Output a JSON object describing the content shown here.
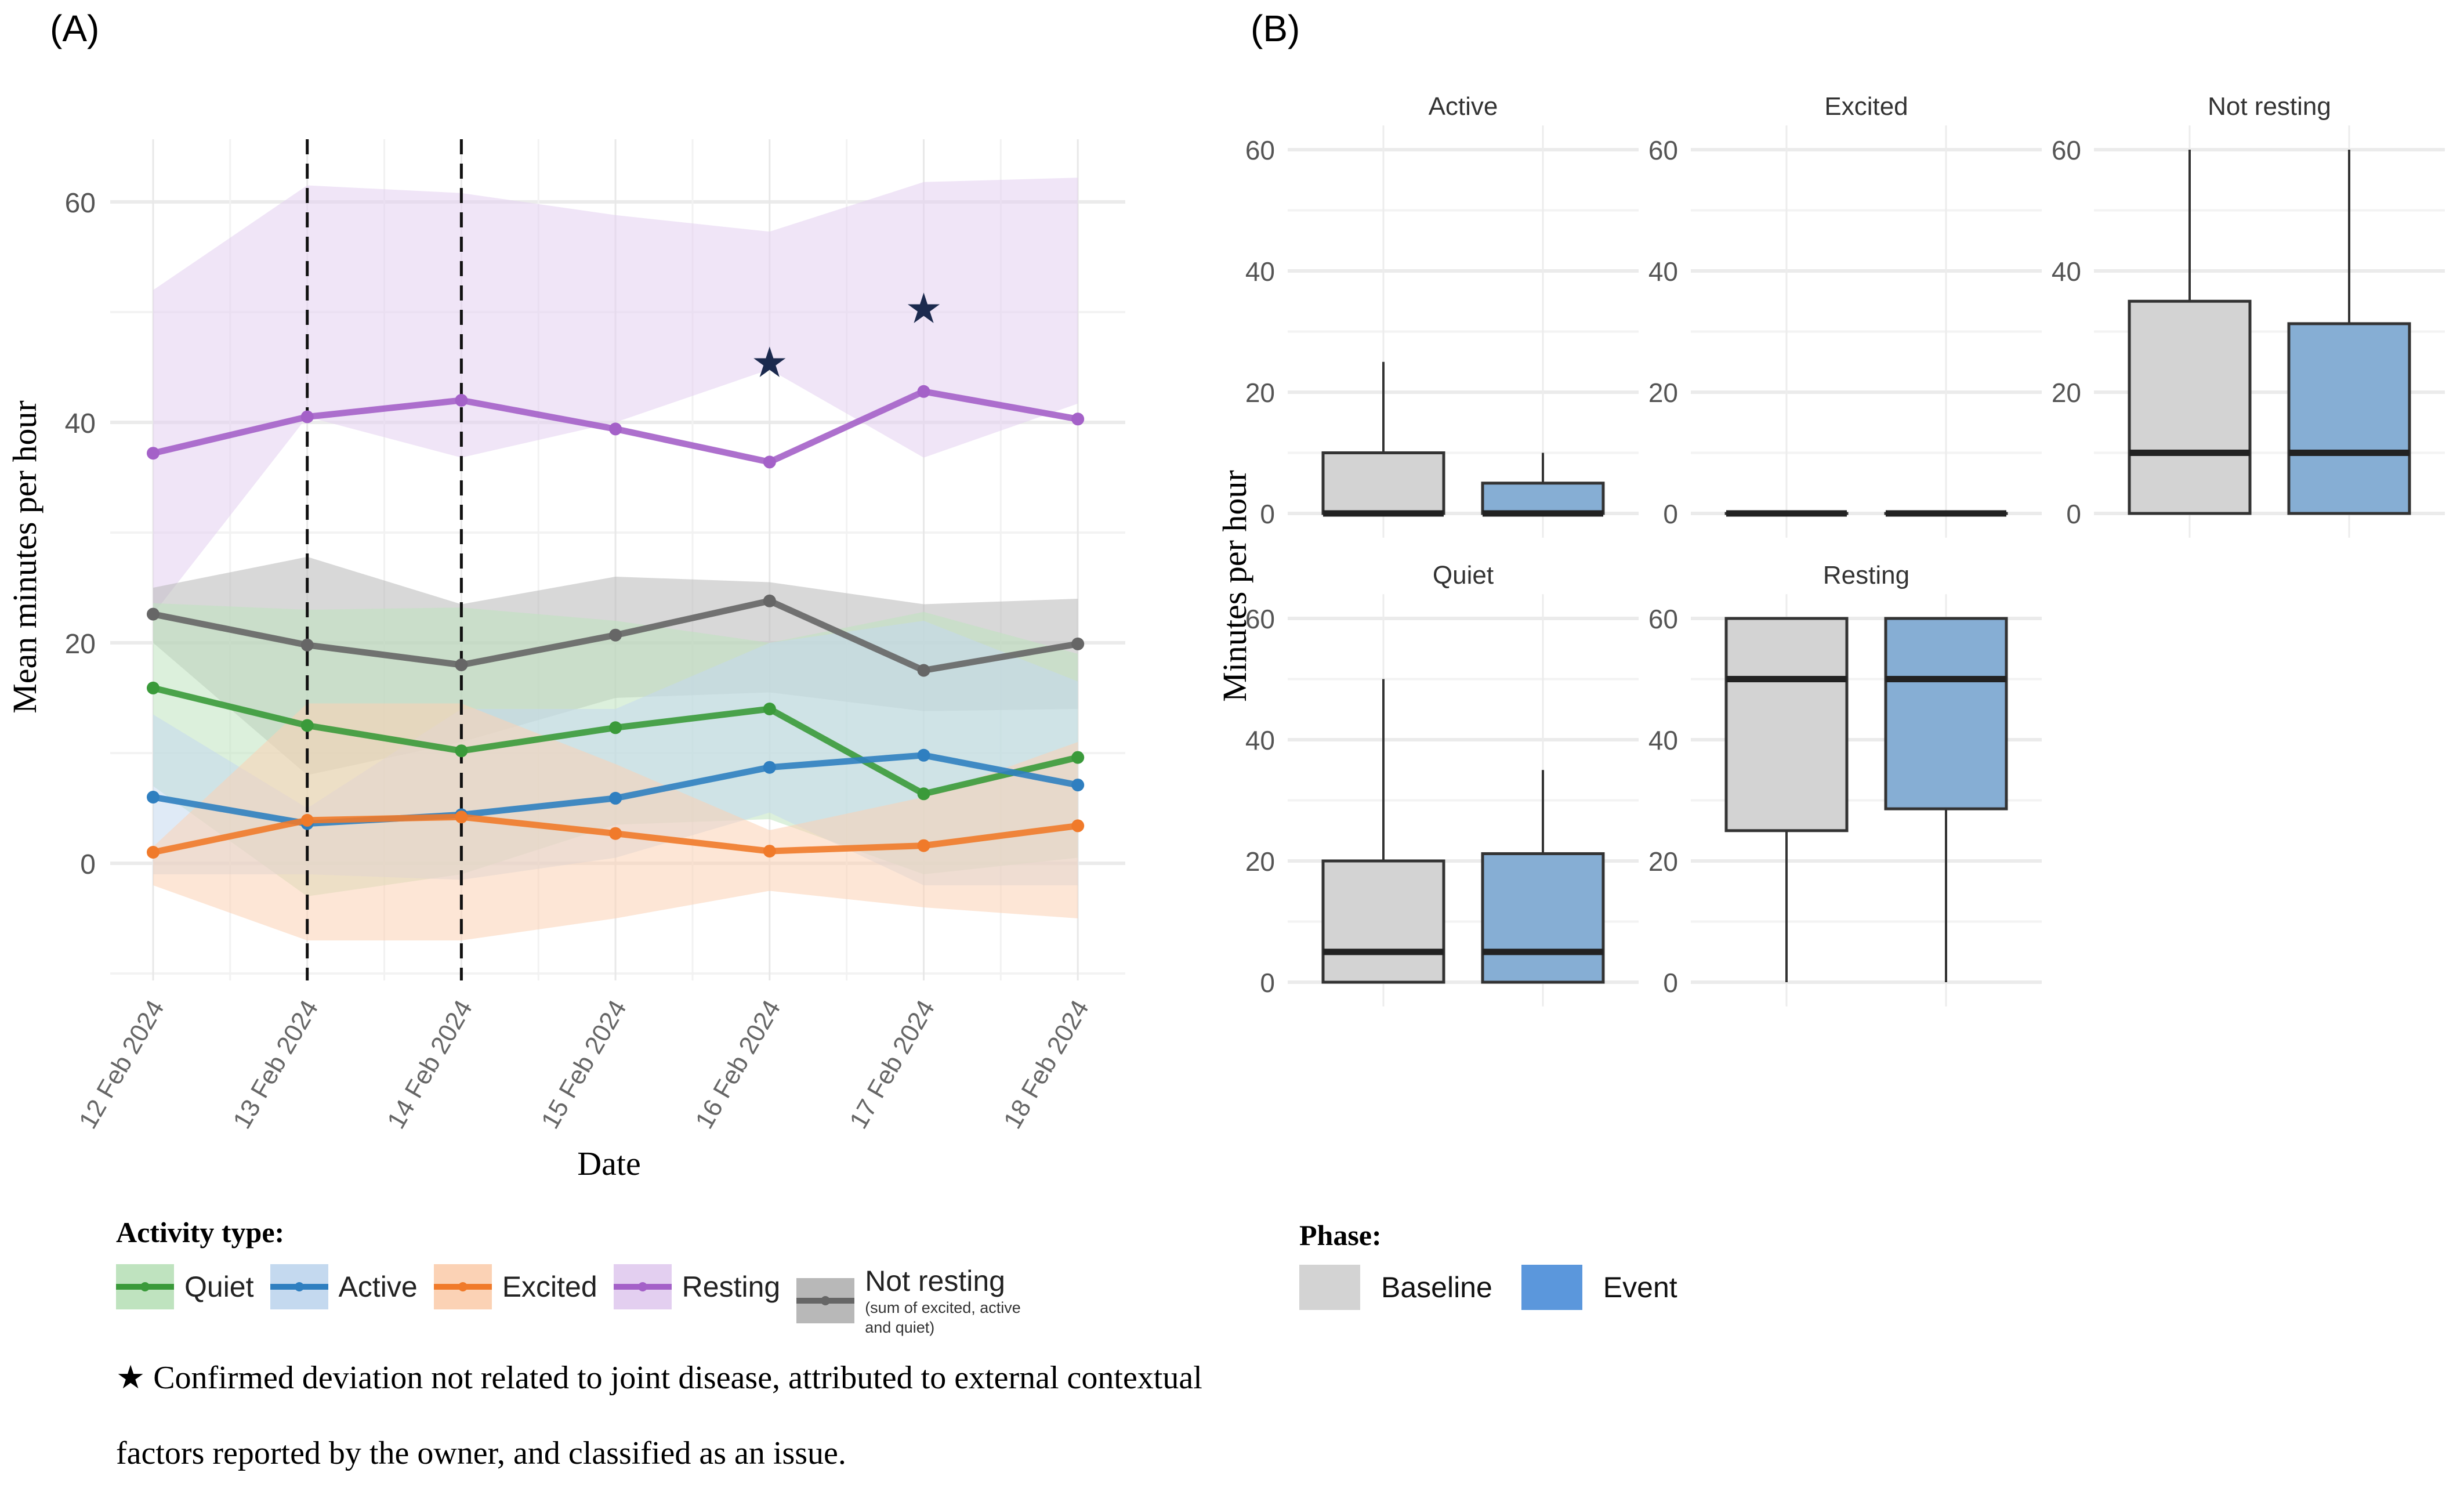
{
  "panels": {
    "a_label": "(A)",
    "b_label": "(B)"
  },
  "chart_data": [
    {
      "type": "line",
      "panel": "A",
      "xlabel": "Date",
      "ylabel": "Mean minutes per hour",
      "x": [
        "12 Feb 2024",
        "13 Feb 2024",
        "14 Feb 2024",
        "15 Feb 2024",
        "16 Feb 2024",
        "17 Feb 2024",
        "18 Feb 2024"
      ],
      "ylim": [
        -10.5,
        65
      ],
      "yticks": [
        0,
        20,
        40,
        60
      ],
      "grid": true,
      "vlines_dashed": [
        "13 Feb 2024",
        "14 Feb 2024"
      ],
      "series": [
        {
          "name": "Resting",
          "color": "#a461c8",
          "band_color": "#e3cff0",
          "values": [
            37.2,
            40.5,
            42.0,
            39.4,
            36.4,
            42.8,
            40.3
          ],
          "lower": [
            22.6,
            40.5,
            36.8,
            40.0,
            44.8,
            36.8,
            41.7
          ],
          "upper": [
            52.0,
            61.5,
            60.8,
            58.8,
            57.3,
            61.8,
            62.2
          ]
        },
        {
          "name": "Not resting",
          "note": "(sum of excited, active and quiet)",
          "color": "#666666",
          "band_color": "#b8b8b8",
          "values": [
            22.6,
            19.8,
            18.0,
            20.7,
            23.8,
            17.5,
            19.9
          ],
          "lower": [
            20.0,
            8.0,
            11.0,
            15.0,
            15.5,
            13.8,
            14.0
          ],
          "upper": [
            25.0,
            27.8,
            23.5,
            26.0,
            25.5,
            23.5,
            24.0
          ]
        },
        {
          "name": "Quiet",
          "color": "#3a9a3a",
          "band_color": "#bfe3bf",
          "values": [
            15.9,
            12.5,
            10.2,
            12.3,
            14.0,
            6.3,
            9.6
          ],
          "lower": [
            7.0,
            -3.0,
            -1.0,
            3.5,
            4.0,
            -1.0,
            0.5
          ],
          "upper": [
            23.6,
            23.0,
            23.2,
            22.0,
            20.0,
            22.8,
            19.0
          ]
        },
        {
          "name": "Active",
          "color": "#2f7fc0",
          "band_color": "#c4d9ef",
          "values": [
            6.0,
            3.6,
            4.4,
            5.9,
            8.7,
            9.8,
            7.1
          ],
          "lower": [
            -1.0,
            -1.0,
            -1.5,
            0.5,
            4.6,
            -2.0,
            -2.0
          ],
          "upper": [
            13.5,
            5.0,
            14.0,
            14.0,
            20.0,
            22.0,
            16.5
          ]
        },
        {
          "name": "Excited",
          "color": "#f07a2a",
          "band_color": "#fbd2b5",
          "values": [
            1.0,
            3.9,
            4.2,
            2.7,
            1.1,
            1.6,
            3.4
          ],
          "lower": [
            -2.0,
            -7.0,
            -7.0,
            -5.0,
            -2.5,
            -4.0,
            -5.0
          ],
          "upper": [
            1.5,
            14.5,
            14.5,
            9.0,
            3.0,
            6.0,
            11.0
          ]
        }
      ],
      "annotations": [
        {
          "symbol": "★",
          "x": "16 Feb 2024",
          "y": 45.5
        },
        {
          "symbol": "★",
          "x": "17 Feb 2024",
          "y": 50.4
        }
      ],
      "legend": {
        "title": "Activity type:",
        "placement": "bottom-left",
        "entries": [
          "Quiet",
          "Active",
          "Excited",
          "Resting",
          "Not resting"
        ],
        "not_resting_note": "(sum of excited, active and quiet)"
      },
      "footnote": "★ Confirmed deviation not related to joint disease, attributed to external contextual factors reported by the owner, and classified as an issue."
    },
    {
      "type": "box",
      "panel": "B",
      "ylabel": "Minutes per hour",
      "ylim": [
        -3,
        63
      ],
      "yticks": [
        0,
        20,
        40,
        60
      ],
      "grid": true,
      "phases": [
        {
          "name": "Baseline",
          "color": "#d3d3d3"
        },
        {
          "name": "Event",
          "color": "#5b97dc",
          "box_color": "#86aed4"
        }
      ],
      "facets": [
        {
          "title": "Active",
          "boxes": [
            {
              "phase": "Baseline",
              "min": 0,
              "q1": 0,
              "median": 0,
              "q3": 10,
              "max": 25
            },
            {
              "phase": "Event",
              "min": 0,
              "q1": 0,
              "median": 0,
              "q3": 5,
              "max": 10
            }
          ]
        },
        {
          "title": "Excited",
          "boxes": [
            {
              "phase": "Baseline",
              "min": 0,
              "q1": 0,
              "median": 0,
              "q3": 0,
              "max": 0
            },
            {
              "phase": "Event",
              "min": 0,
              "q1": 0,
              "median": 0,
              "q3": 0,
              "max": 0
            }
          ]
        },
        {
          "title": "Not resting",
          "boxes": [
            {
              "phase": "Baseline",
              "min": 0,
              "q1": 0,
              "median": 10,
              "q3": 35,
              "max": 60
            },
            {
              "phase": "Event",
              "min": 0,
              "q1": 0,
              "median": 10,
              "q3": 31.3,
              "max": 60
            }
          ]
        },
        {
          "title": "Quiet",
          "boxes": [
            {
              "phase": "Baseline",
              "min": 0,
              "q1": 0,
              "median": 5,
              "q3": 20,
              "max": 50
            },
            {
              "phase": "Event",
              "min": 0,
              "q1": 0,
              "median": 5,
              "q3": 21.2,
              "max": 35
            }
          ]
        },
        {
          "title": "Resting",
          "boxes": [
            {
              "phase": "Baseline",
              "min": 0,
              "q1": 25,
              "median": 50,
              "q3": 60,
              "max": 60
            },
            {
              "phase": "Event",
              "min": 0,
              "q1": 28.6,
              "median": 50,
              "q3": 60,
              "max": 60
            }
          ]
        }
      ],
      "legend": {
        "title": "Phase:",
        "placement": "bottom-left",
        "entries": [
          "Baseline",
          "Event"
        ]
      }
    }
  ]
}
